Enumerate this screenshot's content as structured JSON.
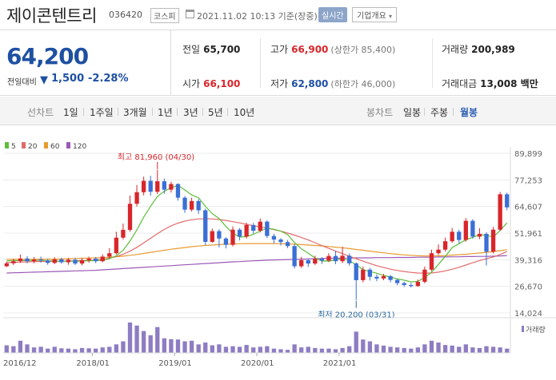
{
  "header": {
    "stock_name": "제이콘텐트리",
    "stock_code": "036420",
    "market": "코스피",
    "datetime": "2021.11.02 10:13 기준(장중)",
    "realtime_label": "실시간",
    "company_info_label": "기업개요"
  },
  "price": {
    "current": "64,200",
    "change_label": "전일대비",
    "change_amount": "1,500",
    "change_percent": "-2.28%"
  },
  "stats": {
    "prev_close_label": "전일",
    "prev_close": "65,700",
    "high_label": "고가",
    "high": "66,900",
    "upper_limit": "(상한가 85,400)",
    "volume_label": "거래량",
    "volume": "200,989",
    "open_label": "시가",
    "open": "66,100",
    "low_label": "저가",
    "low": "62,800",
    "lower_limit": "(하한가 46,000)",
    "amount_label": "거래대금",
    "amount": "13,008 백만"
  },
  "period_tabs": {
    "line_chart_label": "선차트",
    "line_items": [
      "1일",
      "1주일",
      "3개월",
      "1년",
      "3년",
      "5년",
      "10년"
    ],
    "candle_chart_label": "봉차트",
    "candle_items": [
      "일봉",
      "주봉",
      "월봉"
    ],
    "active_candle": "월봉"
  },
  "colors": {
    "up": "#d8262b",
    "down": "#3b6fd6",
    "ma5": "#5cbf3a",
    "ma20": "#e26a6a",
    "ma60": "#e89a2f",
    "ma120": "#9b59b6",
    "volume": "#8e7cc3"
  },
  "chart_data": {
    "type": "candlestick",
    "legend": [
      "5",
      "20",
      "60",
      "120"
    ],
    "y_ticks": [
      "89,899",
      "77,253",
      "64,607",
      "51,961",
      "39,316",
      "26,670",
      "14,024"
    ],
    "ylim": [
      14024,
      89899
    ],
    "x_ticks": [
      "2016/12",
      "2018/01",
      "2019/01",
      "2020/01",
      "2021/01"
    ],
    "max_annotation": "최고 81,960 (04/30)",
    "min_annotation": "최저 20,200 (03/31)",
    "volume_label": "거래량",
    "candles": [
      {
        "o": 36200,
        "c": 37600,
        "h": 38400,
        "l": 35800
      },
      {
        "o": 37600,
        "c": 38600,
        "h": 39800,
        "l": 36800
      },
      {
        "o": 38600,
        "c": 39900,
        "h": 41800,
        "l": 37800
      },
      {
        "o": 39900,
        "c": 38600,
        "h": 41000,
        "l": 37600
      },
      {
        "o": 38600,
        "c": 39400,
        "h": 40600,
        "l": 37600
      },
      {
        "o": 39400,
        "c": 38900,
        "h": 40800,
        "l": 37900
      },
      {
        "o": 38900,
        "c": 37800,
        "h": 39800,
        "l": 36900
      },
      {
        "o": 37800,
        "c": 39500,
        "h": 40500,
        "l": 37200
      },
      {
        "o": 39500,
        "c": 38100,
        "h": 40300,
        "l": 37400
      },
      {
        "o": 38100,
        "c": 39300,
        "h": 40200,
        "l": 36900
      },
      {
        "o": 39300,
        "c": 37500,
        "h": 40300,
        "l": 36800
      },
      {
        "o": 37500,
        "c": 39100,
        "h": 40100,
        "l": 36600
      },
      {
        "o": 39100,
        "c": 39800,
        "h": 40800,
        "l": 37900
      },
      {
        "o": 39800,
        "c": 38600,
        "h": 40600,
        "l": 37700
      },
      {
        "o": 38600,
        "c": 40800,
        "h": 41900,
        "l": 38100
      },
      {
        "o": 40800,
        "c": 42400,
        "h": 44800,
        "l": 39800
      },
      {
        "o": 42400,
        "c": 49800,
        "h": 52600,
        "l": 41800
      },
      {
        "o": 49800,
        "c": 53500,
        "h": 56500,
        "l": 48900
      },
      {
        "o": 53500,
        "c": 65900,
        "h": 69800,
        "l": 52600
      },
      {
        "o": 65900,
        "c": 71400,
        "h": 74800,
        "l": 64600
      },
      {
        "o": 71400,
        "c": 76800,
        "h": 78800,
        "l": 69900
      },
      {
        "o": 76800,
        "c": 71600,
        "h": 79200,
        "l": 69800
      },
      {
        "o": 71600,
        "c": 76600,
        "h": 81960,
        "l": 70500
      },
      {
        "o": 76600,
        "c": 72600,
        "h": 77900,
        "l": 70700
      },
      {
        "o": 72600,
        "c": 75300,
        "h": 76400,
        "l": 71200
      },
      {
        "o": 75300,
        "c": 68800,
        "h": 75600,
        "l": 67400
      },
      {
        "o": 68800,
        "c": 63100,
        "h": 69600,
        "l": 61600
      },
      {
        "o": 63100,
        "c": 67200,
        "h": 68800,
        "l": 62200
      },
      {
        "o": 67200,
        "c": 62800,
        "h": 68100,
        "l": 61100
      },
      {
        "o": 62800,
        "c": 47800,
        "h": 63600,
        "l": 46200
      },
      {
        "o": 47800,
        "c": 52900,
        "h": 54100,
        "l": 47400
      },
      {
        "o": 52900,
        "c": 49400,
        "h": 53800,
        "l": 45200
      },
      {
        "o": 49400,
        "c": 46400,
        "h": 50100,
        "l": 44700
      },
      {
        "o": 46400,
        "c": 53600,
        "h": 55100,
        "l": 45600
      },
      {
        "o": 53600,
        "c": 50300,
        "h": 54400,
        "l": 48500
      },
      {
        "o": 50300,
        "c": 55800,
        "h": 56900,
        "l": 49400
      },
      {
        "o": 55800,
        "c": 53100,
        "h": 56800,
        "l": 51700
      },
      {
        "o": 53100,
        "c": 57400,
        "h": 58900,
        "l": 52300
      },
      {
        "o": 57400,
        "c": 50600,
        "h": 58100,
        "l": 49600
      },
      {
        "o": 50600,
        "c": 48900,
        "h": 51600,
        "l": 47100
      },
      {
        "o": 48900,
        "c": 47700,
        "h": 49600,
        "l": 46100
      },
      {
        "o": 47700,
        "c": 45800,
        "h": 48700,
        "l": 44800
      },
      {
        "o": 45800,
        "c": 36200,
        "h": 46700,
        "l": 35100
      },
      {
        "o": 36200,
        "c": 39100,
        "h": 40700,
        "l": 35400
      },
      {
        "o": 39100,
        "c": 37500,
        "h": 39900,
        "l": 35900
      },
      {
        "o": 37500,
        "c": 39800,
        "h": 41200,
        "l": 36800
      },
      {
        "o": 39800,
        "c": 38900,
        "h": 40600,
        "l": 37300
      },
      {
        "o": 38900,
        "c": 41100,
        "h": 42400,
        "l": 38200
      },
      {
        "o": 41100,
        "c": 38600,
        "h": 43600,
        "l": 37200
      },
      {
        "o": 38600,
        "c": 41200,
        "h": 45400,
        "l": 37700
      },
      {
        "o": 41200,
        "c": 37600,
        "h": 42300,
        "l": 36500
      },
      {
        "o": 37600,
        "c": 29600,
        "h": 38100,
        "l": 20200
      },
      {
        "o": 29600,
        "c": 34600,
        "h": 36100,
        "l": 28600
      },
      {
        "o": 34600,
        "c": 31200,
        "h": 35400,
        "l": 29400
      },
      {
        "o": 31200,
        "c": 30400,
        "h": 32400,
        "l": 29100
      },
      {
        "o": 30400,
        "c": 31500,
        "h": 32600,
        "l": 29600
      },
      {
        "o": 31500,
        "c": 29700,
        "h": 32100,
        "l": 28600
      },
      {
        "o": 29700,
        "c": 28200,
        "h": 30400,
        "l": 27200
      },
      {
        "o": 28200,
        "c": 27300,
        "h": 28900,
        "l": 26400
      },
      {
        "o": 27300,
        "c": 26800,
        "h": 28300,
        "l": 26100
      },
      {
        "o": 26800,
        "c": 28800,
        "h": 29900,
        "l": 26400
      },
      {
        "o": 28800,
        "c": 34600,
        "h": 36100,
        "l": 28100
      },
      {
        "o": 34600,
        "c": 42400,
        "h": 44100,
        "l": 33900
      },
      {
        "o": 42400,
        "c": 44100,
        "h": 46600,
        "l": 41600
      },
      {
        "o": 44100,
        "c": 48100,
        "h": 49800,
        "l": 43300
      },
      {
        "o": 48100,
        "c": 52600,
        "h": 54400,
        "l": 47400
      },
      {
        "o": 52600,
        "c": 48700,
        "h": 53600,
        "l": 47100
      },
      {
        "o": 48700,
        "c": 57800,
        "h": 59100,
        "l": 47900
      },
      {
        "o": 57800,
        "c": 50300,
        "h": 58600,
        "l": 49300
      },
      {
        "o": 50300,
        "c": 51600,
        "h": 54300,
        "l": 49100
      },
      {
        "o": 51600,
        "c": 43100,
        "h": 52400,
        "l": 36600
      },
      {
        "o": 43100,
        "c": 53600,
        "h": 54900,
        "l": 42300
      },
      {
        "o": 53600,
        "c": 70400,
        "h": 71500,
        "l": 53000
      },
      {
        "o": 70400,
        "c": 64200,
        "h": 71200,
        "l": 62800
      }
    ],
    "volumes": [
      25,
      22,
      40,
      28,
      18,
      20,
      14,
      20,
      15,
      14,
      12,
      16,
      15,
      14,
      18,
      20,
      28,
      38,
      100,
      90,
      72,
      58,
      85,
      48,
      45,
      44,
      38,
      40,
      28,
      34,
      25,
      28,
      20,
      22,
      20,
      26,
      18,
      20,
      22,
      14,
      12,
      10,
      28,
      18,
      20,
      16,
      14,
      14,
      12,
      16,
      22,
      70,
      44,
      38,
      28,
      24,
      20,
      18,
      16,
      14,
      18,
      28,
      40,
      34,
      26,
      24,
      20,
      28,
      18,
      16,
      22,
      20,
      18,
      14
    ],
    "ma5": [
      38800,
      38900,
      38900,
      38900,
      39000,
      39000,
      38800,
      38700,
      38700,
      38600,
      38600,
      38600,
      38800,
      38900,
      39100,
      39800,
      41200,
      43800,
      48200,
      53500,
      59500,
      64700,
      69400,
      71800,
      73500,
      74600,
      72500,
      70100,
      68800,
      64700,
      61200,
      58900,
      55100,
      51900,
      50100,
      50300,
      51400,
      52900,
      54300,
      53800,
      52900,
      51200,
      47500,
      44500,
      42400,
      40200,
      38700,
      38700,
      39200,
      39800,
      38900,
      36900,
      34600,
      33700,
      32900,
      31800,
      31100,
      30200,
      29600,
      28800,
      29100,
      30800,
      33400,
      37100,
      40900,
      45100,
      46900,
      48800,
      49900,
      51200,
      50900,
      50100,
      53200,
      56800
    ],
    "ma20": [
      38000,
      38100,
      38200,
      38300,
      38400,
      38500,
      38500,
      38500,
      38600,
      38700,
      38800,
      38900,
      39000,
      39200,
      39500,
      40000,
      40800,
      41900,
      43400,
      45200,
      47300,
      49500,
      51700,
      53700,
      55400,
      56700,
      57700,
      58300,
      58700,
      58800,
      58700,
      58400,
      58000,
      57400,
      56800,
      56100,
      55500,
      54900,
      54300,
      53600,
      52900,
      52000,
      51000,
      49900,
      48700,
      47400,
      46000,
      44700,
      43400,
      42200,
      41000,
      39800,
      38600,
      37500,
      36500,
      35600,
      34800,
      34200,
      33700,
      33300,
      33000,
      32900,
      33000,
      33400,
      34000,
      34800,
      35700,
      36800,
      37900,
      38900,
      39800,
      40600,
      41800,
      43200
    ],
    "ma60": [
      39500,
      39500,
      39500,
      39500,
      39500,
      39600,
      39600,
      39600,
      39700,
      39800,
      39900,
      40000,
      40100,
      40200,
      40300,
      40500,
      40700,
      41000,
      41400,
      41800,
      42300,
      42800,
      43300,
      43800,
      44300,
      44700,
      45100,
      45500,
      45800,
      46100,
      46300,
      46500,
      46700,
      46800,
      46900,
      47000,
      47000,
      47000,
      47000,
      47000,
      46900,
      46800,
      46700,
      46500,
      46300,
      46100,
      45900,
      45600,
      45300,
      45000,
      44600,
      44200,
      43800,
      43400,
      43000,
      42600,
      42200,
      41900,
      41600,
      41400,
      41200,
      41100,
      41100,
      41200,
      41300,
      41500,
      41700,
      41900,
      42200,
      42500,
      42800,
      43200,
      43600,
      44100
    ],
    "ma120": [
      33000,
      33100,
      33200,
      33300,
      33400,
      33500,
      33600,
      33700,
      33800,
      33900,
      34000,
      34100,
      34200,
      34300,
      34500,
      34700,
      34900,
      35100,
      35300,
      35500,
      35700,
      35900,
      36100,
      36300,
      36500,
      36700,
      36900,
      37100,
      37300,
      37500,
      37700,
      37900,
      38100,
      38300,
      38400,
      38600,
      38800,
      38900,
      39100,
      39200,
      39300,
      39400,
      39500,
      39600,
      39700,
      39800,
      39900,
      40000,
      40000,
      40100,
      40100,
      40200,
      40200,
      40200,
      40300,
      40300,
      40300,
      40400,
      40400,
      40400,
      40500,
      40500,
      40500,
      40600,
      40600,
      40700,
      40700,
      40800,
      40800,
      40900,
      40900,
      41000,
      41100,
      41300
    ]
  }
}
